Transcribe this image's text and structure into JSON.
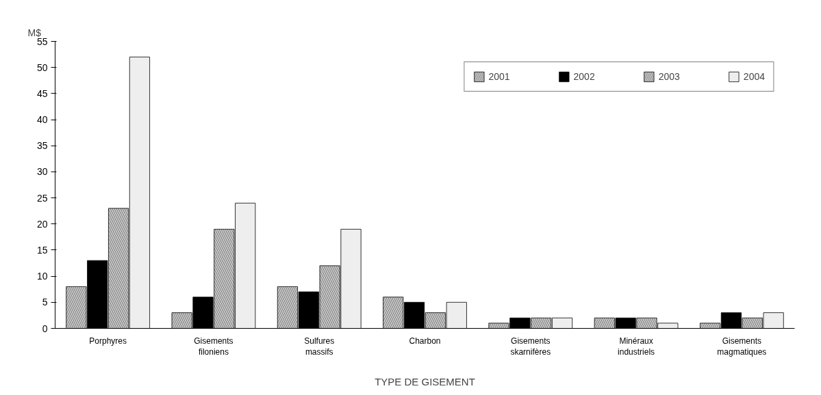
{
  "chart_data": {
    "type": "bar",
    "ylabel": "M$",
    "xlabel": "TYPE DE GISEMENT",
    "categories": [
      "Porphyres",
      "Gisements\nfiloniens",
      "Sulfures\nmassifs",
      "Charbon",
      "Gisements\nskarnifères",
      "Minéraux\nindustriels",
      "Gisements\nmagmatiques"
    ],
    "series": [
      {
        "name": "2001",
        "color": "#c8c8c8",
        "values": [
          8,
          3,
          8,
          6,
          1,
          2,
          1
        ]
      },
      {
        "name": "2002",
        "color": "#000000",
        "values": [
          13,
          6,
          7,
          5,
          2,
          2,
          3
        ]
      },
      {
        "name": "2003",
        "color": "#c8c8c8",
        "values": [
          23,
          19,
          12,
          3,
          2,
          2,
          2
        ]
      },
      {
        "name": "2004",
        "color": "#eeeeee",
        "values": [
          52,
          24,
          19,
          5,
          2,
          1,
          3
        ]
      }
    ],
    "ylim": [
      0,
      55
    ],
    "yticks": [
      0,
      5,
      10,
      15,
      20,
      25,
      30,
      35,
      40,
      45,
      50,
      55
    ],
    "grid": false,
    "legend": "top"
  }
}
